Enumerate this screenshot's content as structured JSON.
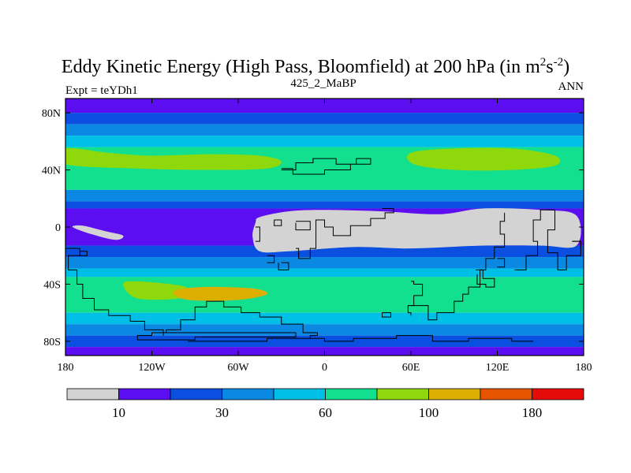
{
  "chart_data": {
    "type": "heatmap",
    "title": "Eddy Kinetic Energy (High Pass, Bloomfield) at 200 hPa (in m",
    "title_units": {
      "sup1": "2",
      "mid": "s",
      "sup2": "-2",
      "close": ")"
    },
    "subtitle_left": "Expt = teYDh1",
    "subtitle_center": "425_2_MaBP",
    "subtitle_right": "ANN",
    "xlim": [
      -180,
      180
    ],
    "ylim": [
      -90,
      90
    ],
    "x_ticks": [
      {
        "value": -180,
        "label": "180"
      },
      {
        "value": -120,
        "label": "120W"
      },
      {
        "value": -60,
        "label": "60W"
      },
      {
        "value": 0,
        "label": "0"
      },
      {
        "value": 60,
        "label": "60E"
      },
      {
        "value": 120,
        "label": "120E"
      },
      {
        "value": 180,
        "label": "180"
      }
    ],
    "y_ticks": [
      {
        "value": 80,
        "label": "80N"
      },
      {
        "value": 40,
        "label": "40N"
      },
      {
        "value": 0,
        "label": "0"
      },
      {
        "value": -40,
        "label": "40S"
      },
      {
        "value": -80,
        "label": "80S"
      }
    ],
    "colorbar": {
      "colors": [
        "#d3d3d3",
        "#5b0ff0",
        "#0b4fe0",
        "#0b89e2",
        "#00bfe6",
        "#12e08f",
        "#8fd80c",
        "#dcae00",
        "#e85500",
        "#e60b0b"
      ],
      "labels": [
        {
          "value": 10,
          "label": "10"
        },
        {
          "value": 30,
          "label": "30"
        },
        {
          "value": 60,
          "label": "60"
        },
        {
          "value": 100,
          "label": "100"
        },
        {
          "value": 180,
          "label": "180"
        }
      ]
    },
    "latitude_bands": [
      {
        "lat_range": [
          80,
          90
        ],
        "level": 1
      },
      {
        "lat_range": [
          72,
          80
        ],
        "level": 2
      },
      {
        "lat_range": [
          64,
          72
        ],
        "level": 3
      },
      {
        "lat_range": [
          56,
          64
        ],
        "level": 4
      },
      {
        "lat_range": [
          26,
          56
        ],
        "level": 5
      },
      {
        "lat_range": [
          18,
          26
        ],
        "level": 3
      },
      {
        "lat_range": [
          13,
          18
        ],
        "level": 2
      },
      {
        "lat_range": [
          -13,
          13
        ],
        "level": 1
      },
      {
        "lat_range": [
          -21,
          -13
        ],
        "level": 2
      },
      {
        "lat_range": [
          -29,
          -21
        ],
        "level": 3
      },
      {
        "lat_range": [
          -35,
          -29
        ],
        "level": 4
      },
      {
        "lat_range": [
          -60,
          -35
        ],
        "level": 5
      },
      {
        "lat_range": [
          -68,
          -60
        ],
        "level": 4
      },
      {
        "lat_range": [
          -76,
          -68
        ],
        "level": 3
      },
      {
        "lat_range": [
          -84,
          -76
        ],
        "level": 2
      },
      {
        "lat_range": [
          -90,
          -84
        ],
        "level": 1
      }
    ],
    "regions": [
      {
        "level": 6,
        "name": "north-jet-west",
        "points": [
          [
            -180,
            55
          ],
          [
            -150,
            52
          ],
          [
            -120,
            50
          ],
          [
            -80,
            51
          ],
          [
            -45,
            50
          ],
          [
            -30,
            46
          ],
          [
            -40,
            41
          ],
          [
            -80,
            40
          ],
          [
            -130,
            41
          ],
          [
            -180,
            44
          ]
        ]
      },
      {
        "level": 6,
        "name": "north-jet-east",
        "points": [
          [
            60,
            52
          ],
          [
            90,
            55
          ],
          [
            130,
            55
          ],
          [
            160,
            50
          ],
          [
            160,
            43
          ],
          [
            130,
            40
          ],
          [
            90,
            40
          ],
          [
            62,
            44
          ]
        ]
      },
      {
        "level": 6,
        "name": "south-jet-patch",
        "points": [
          [
            -140,
            -40
          ],
          [
            -130,
            -38
          ],
          [
            -100,
            -41
          ],
          [
            -95,
            -45
          ],
          [
            -100,
            -50
          ],
          [
            -130,
            -50
          ]
        ]
      },
      {
        "level": 7,
        "name": "south-jet-core",
        "points": [
          [
            -105,
            -45
          ],
          [
            -85,
            -42
          ],
          [
            -50,
            -43
          ],
          [
            -40,
            -47
          ],
          [
            -60,
            -51
          ],
          [
            -95,
            -51
          ]
        ]
      },
      {
        "level": 1,
        "name": "tropic-lobe-west",
        "points": [
          [
            -180,
            12
          ],
          [
            -162,
            10
          ],
          [
            -150,
            7
          ],
          [
            -165,
            4
          ],
          [
            -180,
            4
          ]
        ]
      },
      {
        "level": 0,
        "name": "tropic-min-west",
        "points": [
          [
            -175,
            0
          ],
          [
            -162,
            -5
          ],
          [
            -145,
            -9
          ],
          [
            -140,
            -6
          ],
          [
            -152,
            -3
          ],
          [
            -168,
            1
          ]
        ]
      },
      {
        "level": 0,
        "name": "tropic-min-east",
        "points": [
          [
            -45,
            7
          ],
          [
            -25,
            11
          ],
          [
            0,
            12
          ],
          [
            40,
            11
          ],
          [
            80,
            9
          ],
          [
            110,
            13
          ],
          [
            150,
            12
          ],
          [
            175,
            8
          ],
          [
            175,
            -13
          ],
          [
            150,
            -13
          ],
          [
            110,
            -13
          ],
          [
            60,
            -15
          ],
          [
            20,
            -14
          ],
          [
            -25,
            -17
          ],
          [
            -45,
            -17
          ],
          [
            -50,
            -7
          ],
          [
            -48,
            3
          ]
        ]
      }
    ],
    "coastlines": [
      [
        [
          -180,
          -15
        ],
        [
          -170,
          -15
        ],
        [
          -170,
          -20
        ],
        [
          -178,
          -20
        ],
        [
          -178,
          -30
        ],
        [
          -172,
          -30
        ],
        [
          -172,
          -40
        ],
        [
          -168,
          -40
        ],
        [
          -168,
          -50
        ],
        [
          -160,
          -50
        ],
        [
          -160,
          -58
        ],
        [
          -150,
          -58
        ],
        [
          -150,
          -62
        ],
        [
          -135,
          -62
        ],
        [
          -135,
          -66
        ],
        [
          -125,
          -66
        ],
        [
          -125,
          -72
        ],
        [
          -112,
          -72
        ],
        [
          -112,
          -76
        ]
      ],
      [
        [
          -170,
          -17
        ],
        [
          -165,
          -17
        ],
        [
          -165,
          -20
        ],
        [
          -170,
          -20
        ]
      ],
      [
        [
          -115,
          -74
        ],
        [
          -110,
          -74
        ],
        [
          -110,
          -72
        ],
        [
          -100,
          -72
        ],
        [
          -100,
          -65
        ],
        [
          -90,
          -65
        ],
        [
          -90,
          -56
        ],
        [
          -82,
          -56
        ],
        [
          -82,
          -52
        ],
        [
          -70,
          -52
        ],
        [
          -70,
          -56
        ],
        [
          -58,
          -56
        ],
        [
          -58,
          -60
        ],
        [
          -45,
          -60
        ],
        [
          -45,
          -63
        ],
        [
          -30,
          -63
        ],
        [
          -30,
          -68
        ],
        [
          -15,
          -68
        ],
        [
          -15,
          -74
        ],
        [
          -5,
          -74
        ],
        [
          -5,
          -76
        ],
        [
          -10,
          -76
        ],
        [
          -10,
          -78
        ]
      ],
      [
        [
          -120,
          -74
        ],
        [
          -20,
          -74
        ],
        [
          -20,
          -77
        ],
        [
          -90,
          -77
        ],
        [
          -90,
          -79
        ],
        [
          -130,
          -79
        ],
        [
          -130,
          -76
        ],
        [
          -120,
          -76
        ],
        [
          -120,
          -74
        ]
      ],
      [
        [
          -95,
          -80
        ],
        [
          -40,
          -80
        ],
        [
          -40,
          -78
        ],
        [
          0,
          -78
        ],
        [
          0,
          -80
        ],
        [
          20,
          -80
        ],
        [
          20,
          -78
        ],
        [
          50,
          -78
        ],
        [
          50,
          -76
        ],
        [
          75,
          -76
        ],
        [
          75,
          -80
        ],
        [
          100,
          -80
        ],
        [
          100,
          -78
        ],
        [
          130,
          -78
        ],
        [
          130,
          -80
        ],
        [
          145,
          -80
        ]
      ],
      [
        [
          -30,
          40
        ],
        [
          -20,
          40
        ],
        [
          -20,
          45
        ],
        [
          -8,
          45
        ],
        [
          -8,
          48
        ],
        [
          8,
          48
        ],
        [
          8,
          44
        ],
        [
          22,
          44
        ],
        [
          22,
          48
        ],
        [
          32,
          48
        ],
        [
          32,
          44
        ],
        [
          18,
          44
        ],
        [
          18,
          40
        ],
        [
          0,
          40
        ],
        [
          0,
          37
        ],
        [
          -22,
          37
        ],
        [
          -22,
          41
        ],
        [
          -30,
          41
        ]
      ],
      [
        [
          -20,
          3
        ],
        [
          -20,
          -2
        ],
        [
          -10,
          -2
        ],
        [
          -10,
          4
        ],
        [
          -20,
          4
        ]
      ],
      [
        [
          -48,
          -10
        ],
        [
          -45,
          -10
        ],
        [
          -45,
          0
        ],
        [
          -48,
          0
        ]
      ],
      [
        [
          -40,
          -20
        ],
        [
          -35,
          -20
        ],
        [
          -35,
          -25
        ],
        [
          -40,
          -25
        ]
      ],
      [
        [
          -35,
          5
        ],
        [
          -30,
          5
        ],
        [
          -30,
          1
        ],
        [
          -35,
          1
        ],
        [
          -35,
          5
        ]
      ],
      [
        [
          -20,
          -15
        ],
        [
          -18,
          -15
        ],
        [
          -18,
          -22
        ],
        [
          -10,
          -22
        ],
        [
          -10,
          -15
        ],
        [
          -6,
          -15
        ],
        [
          -6,
          5
        ],
        [
          0,
          5
        ],
        [
          0,
          0
        ],
        [
          6,
          0
        ],
        [
          6,
          -6
        ],
        [
          18,
          -6
        ],
        [
          18,
          1
        ],
        [
          32,
          1
        ],
        [
          32,
          6
        ],
        [
          42,
          6
        ],
        [
          42,
          10
        ],
        [
          48,
          10
        ],
        [
          48,
          13
        ],
        [
          40,
          13
        ]
      ],
      [
        [
          -30,
          -25
        ],
        [
          -25,
          -25
        ],
        [
          -25,
          -30
        ],
        [
          -32,
          -30
        ],
        [
          -32,
          -25
        ]
      ],
      [
        [
          60,
          -38
        ],
        [
          62,
          -38
        ],
        [
          62,
          -40
        ],
        [
          68,
          -40
        ],
        [
          68,
          -48
        ],
        [
          62,
          -48
        ],
        [
          62,
          -55
        ],
        [
          58,
          -55
        ],
        [
          58,
          -60
        ],
        [
          60,
          -60
        ],
        [
          60,
          -62
        ]
      ],
      [
        [
          60,
          -55
        ],
        [
          72,
          -55
        ],
        [
          72,
          -65
        ],
        [
          78,
          -65
        ],
        [
          78,
          -60
        ],
        [
          90,
          -60
        ],
        [
          90,
          -52
        ],
        [
          96,
          -52
        ],
        [
          96,
          -47
        ],
        [
          100,
          -47
        ],
        [
          100,
          -42
        ],
        [
          108,
          -42
        ],
        [
          108,
          -30
        ],
        [
          112,
          -30
        ],
        [
          112,
          -22
        ],
        [
          118,
          -22
        ],
        [
          118,
          -14
        ],
        [
          125,
          -14
        ],
        [
          125,
          -5
        ],
        [
          122,
          -5
        ],
        [
          122,
          4
        ],
        [
          125,
          4
        ],
        [
          125,
          10
        ]
      ],
      [
        [
          120,
          -22
        ],
        [
          125,
          -22
        ],
        [
          125,
          -28
        ],
        [
          120,
          -28
        ]
      ],
      [
        [
          132,
          -30
        ],
        [
          140,
          -30
        ],
        [
          140,
          -20
        ],
        [
          148,
          -20
        ],
        [
          148,
          -10
        ],
        [
          145,
          -10
        ],
        [
          145,
          5
        ],
        [
          150,
          5
        ],
        [
          150,
          12
        ],
        [
          160,
          12
        ],
        [
          160,
          -2
        ],
        [
          155,
          -2
        ],
        [
          155,
          -18
        ],
        [
          162,
          -18
        ],
        [
          162,
          -30
        ],
        [
          168,
          -30
        ],
        [
          168,
          -20
        ],
        [
          178,
          -20
        ],
        [
          178,
          -10
        ],
        [
          172,
          -10
        ]
      ],
      [
        [
          105,
          -30
        ],
        [
          110,
          -30
        ],
        [
          110,
          -36
        ],
        [
          118,
          -36
        ],
        [
          118,
          -42
        ],
        [
          112,
          -42
        ],
        [
          112,
          -40
        ],
        [
          106,
          -40
        ],
        [
          106,
          -33
        ]
      ],
      [
        [
          40,
          -60
        ],
        [
          46,
          -60
        ],
        [
          46,
          -63
        ],
        [
          40,
          -63
        ],
        [
          40,
          -60
        ]
      ],
      [
        [
          172,
          -10
        ],
        [
          178,
          -10
        ],
        [
          178,
          -15
        ]
      ]
    ]
  }
}
